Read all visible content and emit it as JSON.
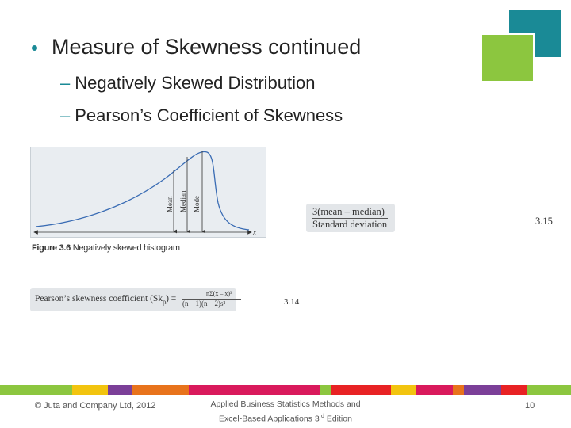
{
  "slide": {
    "bullet": "Measure of Skewness continued",
    "sub_items": [
      "Negatively Skewed Distribution",
      "Pearson’s Coefficient of Skewness"
    ],
    "dash": "–"
  },
  "figure": {
    "label_mean": "Mean",
    "label_median": "Median",
    "label_mode": "Mode",
    "axis_x": "x",
    "caption_bold": "Figure 3.6",
    "caption_text": "Negatively skewed histogram"
  },
  "formula_315": {
    "numerator": "3(mean – median)",
    "denominator": "Standard deviation",
    "number": "3.15"
  },
  "formula_314": {
    "label": "Pearson’s skewness coefficient (Sk",
    "label_sub": "p",
    "label_end": ") =",
    "numerator": "nΣ(x  – x̄)³",
    "denominator": "(n – 1)(n – 2)s³",
    "number": "3.14"
  },
  "footer": {
    "copyright": "© Juta and Company Ltd, 2012",
    "book_line1": "Applied Business Statistics Methods and",
    "book_line2_pre": "Excel-Based Applications 3",
    "book_line2_sup": "rd",
    "book_line2_post": " Edition",
    "page": "10"
  },
  "colors": {
    "accent_teal": "#1a8a96",
    "accent_green": "#8cc63f",
    "stripe": [
      "#8cc63f",
      "#f2c40f",
      "#7b3f98",
      "#e8731c",
      "#d91a5c",
      "#8cc63f",
      "#e82224",
      "#f2c40f",
      "#d91a5c",
      "#e8731c",
      "#7b3f98",
      "#e82224",
      "#8cc63f"
    ]
  }
}
